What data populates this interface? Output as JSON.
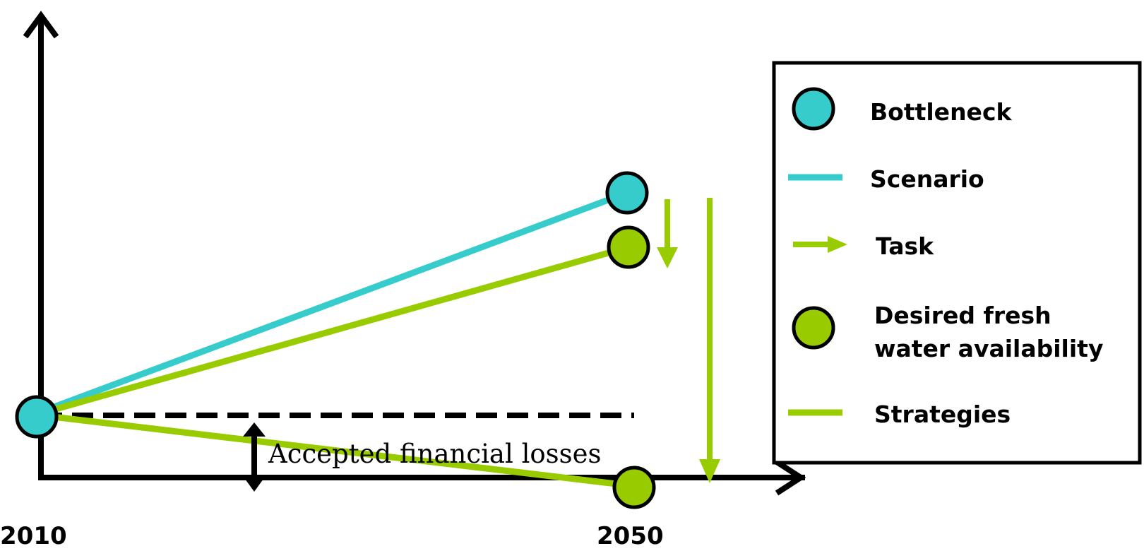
{
  "diagram": {
    "x_labels": {
      "start": "2010",
      "end": "2050"
    },
    "annotation": "Accepted financial losses",
    "legend": {
      "bottleneck": "Bottleneck",
      "scenario": "Scenario",
      "task": "Task",
      "desired_line1": "Desired  fresh",
      "desired_line2": "water availability",
      "strategies": "Strategies"
    },
    "colors": {
      "cyan": "#36cccc",
      "green": "#99cc00",
      "axis": "#000000"
    }
  }
}
